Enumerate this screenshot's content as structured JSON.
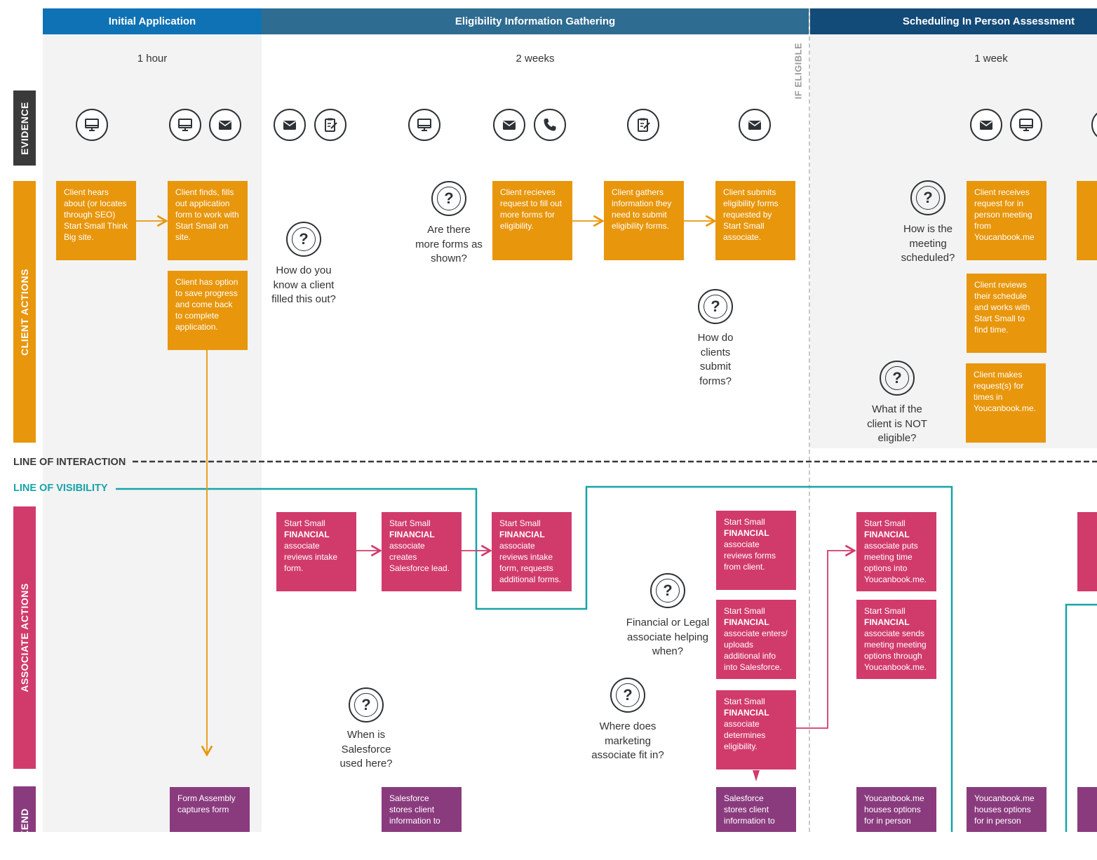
{
  "phases": [
    {
      "label": "Initial Application",
      "duration": "1 hour"
    },
    {
      "label": "Eligibility Information Gathering",
      "duration": "2 weeks"
    },
    {
      "label": "Scheduling In Person Assessment",
      "duration": "1 week"
    }
  ],
  "if_eligible": "IF ELIGIBLE",
  "lanes": {
    "evidence": "EVIDENCE",
    "client": "CLIENT ACTIONS",
    "associate": "ASSOCIATE ACTIONS",
    "backend": "BACKEND"
  },
  "lines": {
    "interaction": "LINE OF INTERACTION",
    "visibility": "LINE OF VISIBILITY"
  },
  "colors": {
    "phase1": "#0f72b5",
    "phase2": "#2e6c91",
    "phase3": "#124a78",
    "client": "#e8960c",
    "associate": "#d13b6c",
    "backend": "#8a3b7e",
    "evidence": "#3a3a3a",
    "visibility": "#17a3a8"
  },
  "client_actions": [
    "Client hears about (or locates through SEO) Start Small Think Big site.",
    "Client finds, fills out application form to work with Start Small on site.",
    "Client has option to save progress and come back to complete application.",
    "Client recieves request to fill out more forms for eligibility.",
    "Client gathers information they need to submit eligibility forms.",
    "Client submits eligibility forms requested by Start Small associate.",
    "Client receives request for in person meeting from Youcanbook.me",
    "Client reviews their schedule and works with Start Small to find time.",
    "Client makes request(s) for times in Youcanbook.me."
  ],
  "associate_actions": [
    {
      "pre": "Start Small",
      "bold": "FINANCIAL",
      "post": "associate reviews intake form."
    },
    {
      "pre": "Start Small",
      "bold": "FINANCIAL",
      "post": "associate creates Salesforce lead."
    },
    {
      "pre": "Start Small",
      "bold": "FINANCIAL",
      "post": "associate reviews intake form, requests additional forms."
    },
    {
      "pre": "Start Small",
      "bold": "FINANCIAL",
      "post": "associate reviews forms from client."
    },
    {
      "pre": "Start Small",
      "bold": "FINANCIAL",
      "post": "associate enters/ uploads additional info into Salesforce."
    },
    {
      "pre": "Start Small",
      "bold": "FINANCIAL",
      "post": "associate determines eligibility."
    },
    {
      "pre": "Start Small",
      "bold": "FINANCIAL",
      "post": "associate puts meeting time options into Youcanbook.me."
    },
    {
      "pre": "Start Small",
      "bold": "FINANCIAL",
      "post": "associate sends meeting meeting options through Youcanbook.me."
    }
  ],
  "backend": [
    "Form Assembly captures form",
    "Salesforce stores client information to",
    "Salesforce stores client information to",
    "Youcanbook.me houses options for in person",
    "Youcanbook.me houses options for in person"
  ],
  "questions": [
    "How do you know a client filled this out?",
    "Are there more forms as shown?",
    "How do clients submit forms?",
    "How is the meeting scheduled?",
    "What if the client is NOT eligible?",
    "Financial or Legal associate helping when?",
    "When is Salesforce used here?",
    "Where does marketing associate fit in?"
  ],
  "evidence_icons": [
    "computer-icon",
    "computer-icon",
    "email-icon",
    "email-icon",
    "form-icon",
    "computer-icon",
    "email-icon",
    "phone-icon",
    "form-icon",
    "email-icon",
    "email-icon",
    "computer-icon"
  ]
}
